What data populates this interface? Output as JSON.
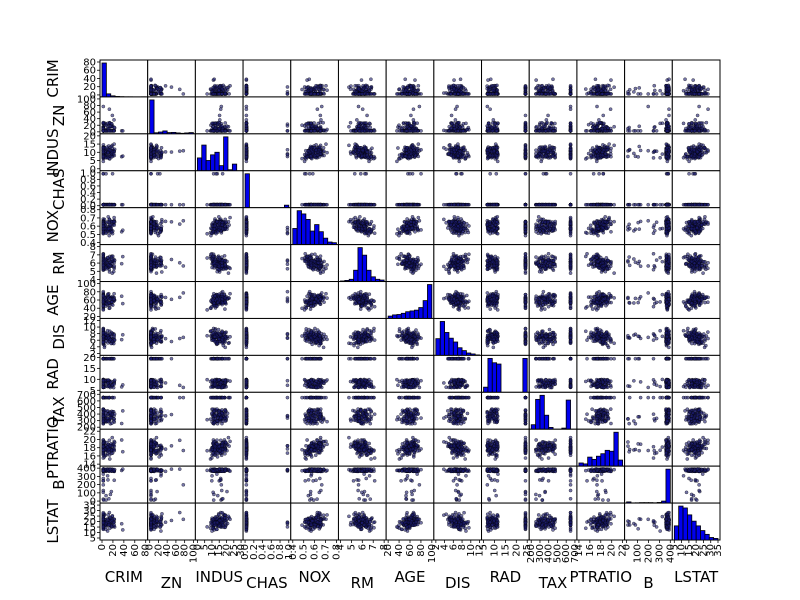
{
  "chart_data": {
    "type": "scatter_matrix",
    "variables": [
      "CRIM",
      "ZN",
      "INDUS",
      "CHAS",
      "NOX",
      "RM",
      "AGE",
      "DIS",
      "RAD",
      "TAX",
      "PTRATIO",
      "B",
      "LSTAT"
    ],
    "diagonal": "histogram",
    "bins": 10,
    "colors": {
      "hist_fill": "#0000ee",
      "point_fill": "#1a1a6e",
      "point_edge": "#000000"
    },
    "x_ticks": {
      "CRIM": [
        "0",
        "20",
        "40",
        "60",
        "80"
      ],
      "ZN": [
        "0",
        "20",
        "40",
        "60",
        "80",
        "100"
      ],
      "INDUS": [
        "0",
        "5",
        "10",
        "15",
        "20",
        "25",
        "30"
      ],
      "CHAS": [
        "0.0",
        "0.2",
        "0.4",
        "0.6",
        "0.8",
        "1.0"
      ],
      "NOX": [
        "0.4",
        "0.5",
        "0.6",
        "0.7",
        "0.8"
      ],
      "RM": [
        "4",
        "5",
        "6",
        "7",
        "8"
      ],
      "AGE": [
        "20",
        "40",
        "60",
        "80",
        "100"
      ],
      "DIS": [
        "2",
        "4",
        "6",
        "8",
        "10",
        "12"
      ],
      "RAD": [
        "5",
        "10",
        "15",
        "20",
        "25"
      ],
      "TAX": [
        "200",
        "300",
        "400",
        "500",
        "600",
        "700"
      ],
      "PTRATIO": [
        "14",
        "16",
        "18",
        "20",
        "22"
      ],
      "B": [
        "0",
        "100",
        "200",
        "300",
        "400"
      ],
      "LSTAT": [
        "5",
        "10",
        "15",
        "20",
        "25",
        "30",
        "35"
      ]
    },
    "y_ticks": {
      "CRIM": [
        "0",
        "20",
        "40",
        "60",
        "80"
      ],
      "ZN": [
        "0",
        "20",
        "40",
        "60",
        "80",
        "100"
      ],
      "INDUS": [
        "0",
        "5",
        "10",
        "15",
        "20"
      ],
      "CHAS": [
        "0.0",
        "0.2",
        "0.4",
        "0.6",
        "0.8",
        "1.0"
      ],
      "NOX": [
        "0.4",
        "0.5",
        "0.6",
        "0.7",
        "0.8"
      ],
      "RM": [
        "4",
        "5",
        "6",
        "7",
        "8"
      ],
      "AGE": [
        "20",
        "40",
        "60",
        "80",
        "100"
      ],
      "DIS": [
        "2",
        "4",
        "6",
        "8",
        "10",
        "12"
      ],
      "RAD": [
        "5",
        "10",
        "15",
        "20"
      ],
      "TAX": [
        "200",
        "300",
        "400",
        "500",
        "600",
        "700"
      ],
      "PTRATIO": [
        "14",
        "16",
        "18",
        "20",
        "22"
      ],
      "B": [
        "0",
        "100",
        "200",
        "300",
        "400"
      ],
      "LSTAT": [
        "5",
        "10",
        "15",
        "20",
        "25",
        "30",
        "35"
      ]
    },
    "histograms": {
      "CRIM": [
        440,
        40,
        14,
        6,
        3,
        1,
        1,
        0,
        0,
        1
      ],
      "ZN": [
        372,
        12,
        20,
        32,
        14,
        16,
        10,
        6,
        10,
        14
      ],
      "INDUS": [
        50,
        100,
        40,
        62,
        72,
        20,
        132,
        4,
        26,
        0
      ],
      "CHAS": [
        471,
        0,
        0,
        0,
        0,
        0,
        0,
        0,
        0,
        35
      ],
      "NOX": [
        50,
        105,
        95,
        78,
        42,
        62,
        40,
        20,
        8,
        6
      ],
      "RM": [
        3,
        6,
        12,
        60,
        180,
        140,
        60,
        25,
        12,
        8
      ],
      "AGE": [
        12,
        18,
        20,
        26,
        34,
        38,
        42,
        55,
        90,
        171
      ],
      "DIS": [
        70,
        142,
        96,
        72,
        56,
        32,
        20,
        10,
        6,
        2
      ],
      "RAD": [
        20,
        132,
        115,
        110,
        0,
        0,
        0,
        0,
        0,
        132
      ],
      "TAX": [
        20,
        132,
        150,
        62,
        8,
        0,
        0,
        5,
        129,
        0
      ],
      "PTRATIO": [
        14,
        10,
        40,
        30,
        44,
        55,
        70,
        66,
        150,
        27
      ],
      "B": [
        15,
        3,
        4,
        6,
        6,
        6,
        4,
        8,
        25,
        429
      ],
      "LSTAT": [
        45,
        108,
        102,
        80,
        60,
        45,
        30,
        18,
        8,
        5
      ]
    }
  }
}
